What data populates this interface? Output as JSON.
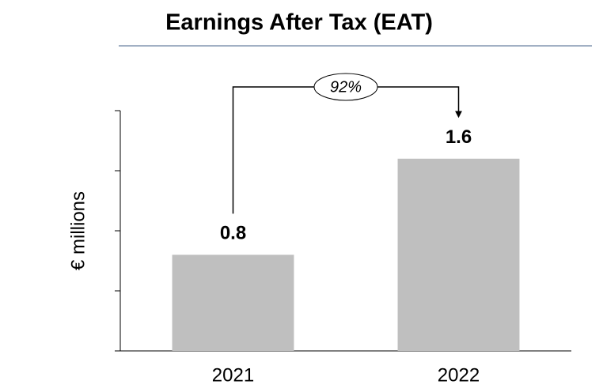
{
  "chart_data": {
    "type": "bar",
    "title": "Earnings After Tax (EAT)",
    "y_label": "€ millions",
    "categories": [
      "2021",
      "2022"
    ],
    "values": [
      0.8,
      1.6
    ],
    "color": "#bfbfbf",
    "ylim": [
      0,
      2
    ],
    "yticks": [
      0,
      0.5,
      1,
      1.5,
      2
    ],
    "annotation": "92%"
  }
}
